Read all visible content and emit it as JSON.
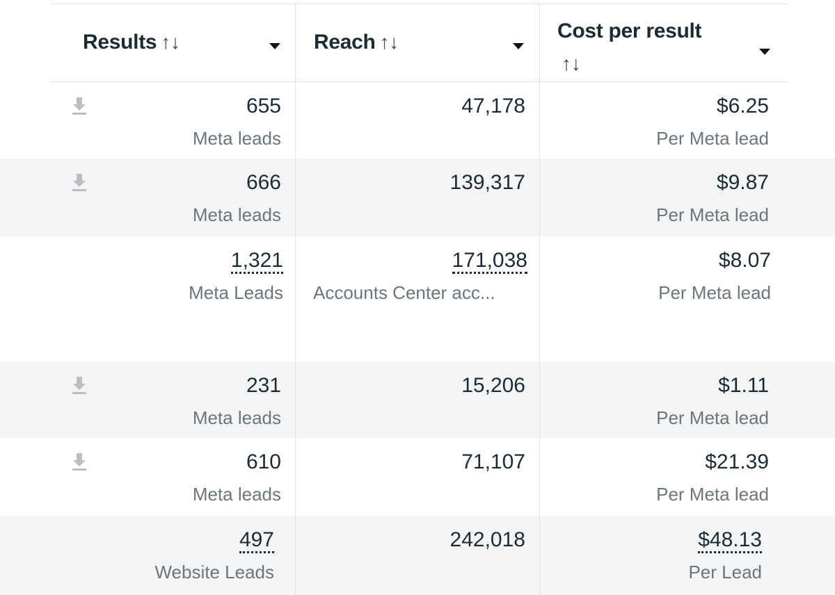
{
  "columns": [
    {
      "label": "Results",
      "sort_icon": "↑↓"
    },
    {
      "label": "Reach",
      "sort_icon": "↑↓"
    },
    {
      "label": "Cost per result",
      "sort_icon": "↑↓"
    }
  ],
  "colors": {
    "row_alt": "#f2f4f6",
    "text": "#1c2b33",
    "subtext": "#6b757c"
  },
  "rows": [
    {
      "results": "655",
      "results_type": "Meta leads",
      "reach": "47,178",
      "reach_note": "",
      "cost": "$6.25",
      "cost_type": "Per Meta lead",
      "icon": "download-icon"
    },
    {
      "results": "666",
      "results_type": "Meta leads",
      "reach": "139,317",
      "reach_note": "",
      "cost": "$9.87",
      "cost_type": "Per Meta lead",
      "icon": "download-icon"
    },
    {
      "results": "1,321",
      "results_type": "Meta Leads",
      "reach": "171,038",
      "reach_note": "Accounts Center acc...",
      "cost": "$8.07",
      "cost_type": "Per Meta lead",
      "icon": ""
    },
    {
      "results": "231",
      "results_type": "Meta leads",
      "reach": "15,206",
      "reach_note": "",
      "cost": "$1.11",
      "cost_type": "Per Meta lead",
      "icon": "download-icon"
    },
    {
      "results": "610",
      "results_type": "Meta leads",
      "reach": "71,107",
      "reach_note": "",
      "cost": "$21.39",
      "cost_type": "Per Meta lead",
      "icon": "download-icon"
    },
    {
      "results": "497",
      "results_type": "Website Leads",
      "reach": "242,018",
      "reach_note": "",
      "cost": "$48.13",
      "cost_type": "Per Lead",
      "icon": ""
    }
  ]
}
